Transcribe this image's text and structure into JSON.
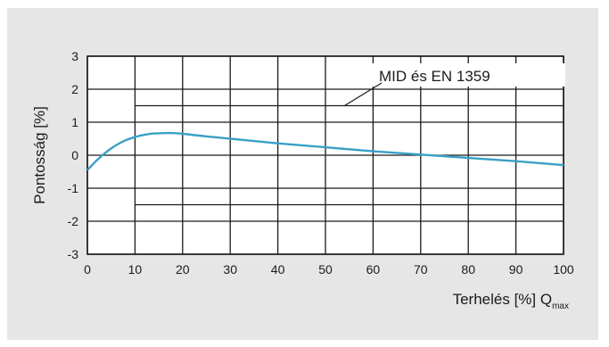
{
  "chart_data": {
    "type": "line",
    "title": "",
    "xlabel": "Terhelés [%] Q",
    "xlabel_subscript": "max",
    "ylabel": "Pontosság [%]",
    "xlim": [
      0,
      100
    ],
    "ylim": [
      -3,
      3
    ],
    "x_ticks": [
      "0",
      "10",
      "20",
      "30",
      "40",
      "50",
      "60",
      "70",
      "80",
      "90",
      "100"
    ],
    "y_ticks": [
      "3",
      "2",
      "1",
      "0",
      "-1",
      "-2",
      "-3"
    ],
    "grid": true,
    "series": [
      {
        "name": "",
        "color": "#3aa0c6",
        "x": [
          0,
          2,
          4,
          6,
          8,
          10,
          12,
          14,
          16,
          18,
          20,
          25,
          30,
          35,
          40,
          50,
          60,
          70,
          80,
          90,
          100
        ],
        "y": [
          -0.45,
          -0.15,
          0.1,
          0.3,
          0.45,
          0.55,
          0.62,
          0.66,
          0.67,
          0.67,
          0.65,
          0.57,
          0.5,
          0.43,
          0.36,
          0.24,
          0.12,
          0.02,
          -0.08,
          -0.18,
          -0.3
        ]
      }
    ],
    "limit_band": {
      "x_from": 10,
      "x_to": 100,
      "upper": 1.5,
      "lower": -1.5
    },
    "annotation": {
      "text": "MID és EN 1359",
      "target_x": 54,
      "target_y": 1.5
    }
  }
}
